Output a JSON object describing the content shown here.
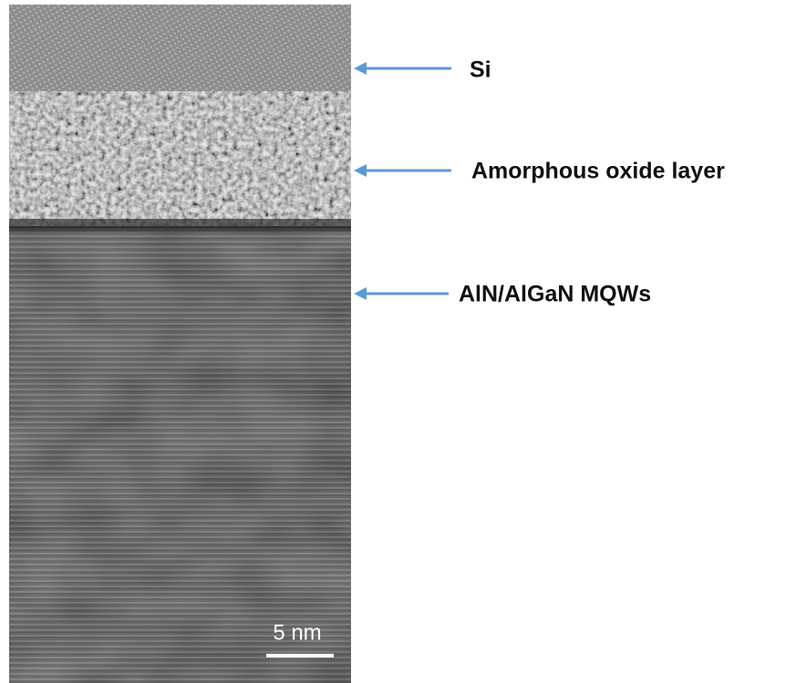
{
  "labels": [
    {
      "text": "Si"
    },
    {
      "text": "Amorphous oxide layer"
    },
    {
      "text": "AlN/AlGaN MQWs"
    }
  ],
  "scale_bar": {
    "label": "5 nm"
  }
}
